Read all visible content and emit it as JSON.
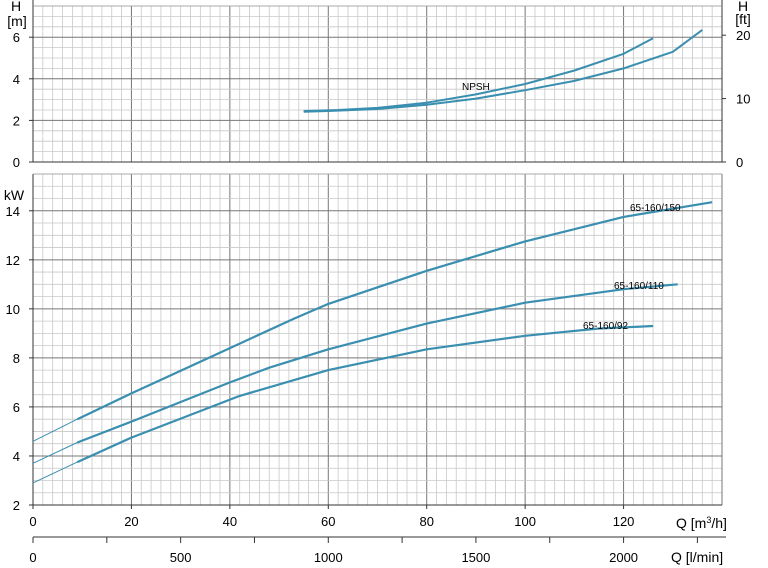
{
  "chart_data": [
    {
      "type": "line",
      "title": "",
      "ylabel_left": "H [m]",
      "ylabel_left_parts": [
        "H",
        "[m]"
      ],
      "ylabel_right": "H [ft]",
      "ylabel_right_parts": [
        "H",
        "[ft]"
      ],
      "xlim": [
        0,
        140
      ],
      "ylim": [
        0,
        7.5
      ],
      "ylim_right": [
        0,
        24.6
      ],
      "yticks": [
        0,
        2,
        4,
        6
      ],
      "yticks_right": [
        0,
        10,
        20
      ],
      "grid": true,
      "series": [
        {
          "name": "NPSH",
          "color": "#3a8fb0",
          "x": [
            55,
            62,
            70,
            80,
            90,
            100,
            110,
            120,
            126
          ],
          "y": [
            2.45,
            2.5,
            2.6,
            2.85,
            3.25,
            3.75,
            4.4,
            5.2,
            5.95
          ]
        },
        {
          "name": "",
          "color": "#3a8fb0",
          "x": [
            55,
            60,
            70,
            80,
            90,
            100,
            110,
            120,
            130,
            136
          ],
          "y": [
            2.42,
            2.45,
            2.55,
            2.75,
            3.05,
            3.45,
            3.9,
            4.5,
            5.3,
            6.35
          ]
        }
      ]
    },
    {
      "type": "line",
      "title": "",
      "ylabel": "kW",
      "xlabel": "Q [m³/h]",
      "xlabel_parts": [
        "Q [m",
        "3",
        "/h]"
      ],
      "xlabel_secondary": "Q [l/min]",
      "xlim": [
        0,
        140
      ],
      "ylim": [
        2,
        15.5
      ],
      "yticks": [
        2,
        4,
        6,
        8,
        10,
        12,
        14
      ],
      "xticks": [
        0,
        20,
        40,
        60,
        80,
        100,
        120
      ],
      "xticks_secondary": [
        0,
        500,
        1000,
        1500,
        2000
      ],
      "grid": true,
      "series": [
        {
          "name": "65-160/150",
          "color": "#3a8fb0",
          "x": [
            0,
            9,
            20,
            40,
            53,
            60,
            80,
            100,
            120,
            138
          ],
          "y": [
            4.6,
            5.5,
            6.55,
            8.4,
            9.6,
            10.2,
            11.55,
            12.75,
            13.75,
            14.35
          ]
        },
        {
          "name": "65-160/110",
          "color": "#3a8fb0",
          "x": [
            0,
            9,
            20,
            40,
            48,
            60,
            80,
            100,
            120,
            131
          ],
          "y": [
            3.7,
            4.55,
            5.4,
            7.0,
            7.6,
            8.35,
            9.4,
            10.25,
            10.8,
            11.0
          ]
        },
        {
          "name": "65-160/92",
          "color": "#3a8fb0",
          "x": [
            0,
            9,
            20,
            42,
            60,
            80,
            100,
            115,
            126
          ],
          "y": [
            2.9,
            3.75,
            4.75,
            6.45,
            7.5,
            8.35,
            8.9,
            9.2,
            9.3
          ]
        }
      ]
    }
  ]
}
